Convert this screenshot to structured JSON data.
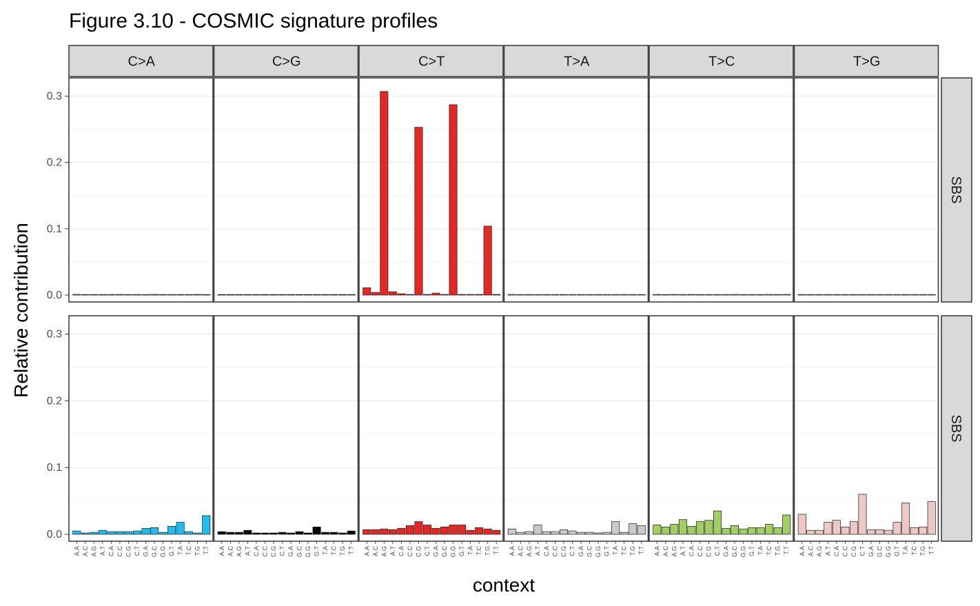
{
  "chart_data": {
    "type": "bar",
    "title": "Figure 3.10 - COSMIC signature profiles",
    "xlabel": "context",
    "ylabel": "Relative contribution",
    "ylim": [
      0,
      0.315
    ],
    "yticks": [
      "0.0",
      "0.1",
      "0.2",
      "0.3"
    ],
    "grid": true,
    "legend": "none",
    "facet_columns": [
      "C>A",
      "C>G",
      "C>T",
      "T>A",
      "T>C",
      "T>G"
    ],
    "facet_rows": [
      "SBS",
      "SBS"
    ],
    "contexts": [
      "A.A",
      "A.C",
      "A.G",
      "A.T",
      "C.A",
      "C.C",
      "C.G",
      "C.T",
      "G.A",
      "G.C",
      "G.G",
      "G.T",
      "T.A",
      "T.C",
      "T.G",
      "T.T"
    ],
    "colors": {
      "C>A": "#1ebff0",
      "C>G": "#050708",
      "C>T": "#e62725",
      "T>A": "#cbcacb",
      "T>C": "#a1cf64",
      "T>G": "#edc8c5"
    },
    "rows": [
      {
        "label": "SBS",
        "series": [
          {
            "mutation": "C>A",
            "values": [
              0.001,
              0,
              0,
              0,
              0,
              0.001,
              0,
              0,
              0,
              0.001,
              0,
              0,
              0,
              0,
              0.001,
              0
            ]
          },
          {
            "mutation": "C>G",
            "values": [
              0,
              0,
              0,
              0,
              0,
              0,
              0,
              0,
              0,
              0,
              0,
              0,
              0,
              0,
              0,
              0
            ]
          },
          {
            "mutation": "C>T",
            "values": [
              0.011,
              0.004,
              0.307,
              0.005,
              0.002,
              0.001,
              0.253,
              0.001,
              0.003,
              0.001,
              0.287,
              0.001,
              0.001,
              0.001,
              0.104,
              0.001
            ]
          },
          {
            "mutation": "T>A",
            "values": [
              0.001,
              0,
              0,
              0,
              0,
              0,
              0,
              0,
              0,
              0,
              0,
              0,
              0,
              0.001,
              0,
              0
            ]
          },
          {
            "mutation": "T>C",
            "values": [
              0.001,
              0,
              0.001,
              0,
              0.001,
              0,
              0,
              0,
              0,
              0.001,
              0,
              0,
              0,
              0.001,
              0,
              0.001
            ]
          },
          {
            "mutation": "T>G",
            "values": [
              0,
              0,
              0,
              0,
              0,
              0,
              0,
              0,
              0,
              0,
              0,
              0,
              0,
              0,
              0,
              0
            ]
          }
        ]
      },
      {
        "label": "SBS",
        "series": [
          {
            "mutation": "C>A",
            "values": [
              0.005,
              0.002,
              0.003,
              0.006,
              0.004,
              0.004,
              0.004,
              0.005,
              0.009,
              0.01,
              0.003,
              0.012,
              0.018,
              0.004,
              0.002,
              0.028
            ]
          },
          {
            "mutation": "C>G",
            "values": [
              0.004,
              0.003,
              0.003,
              0.006,
              0.002,
              0.002,
              0.002,
              0.003,
              0.002,
              0.004,
              0.002,
              0.011,
              0.003,
              0.003,
              0.002,
              0.005
            ]
          },
          {
            "mutation": "C>T",
            "values": [
              0.007,
              0.007,
              0.008,
              0.007,
              0.009,
              0.013,
              0.019,
              0.014,
              0.009,
              0.011,
              0.014,
              0.014,
              0.006,
              0.01,
              0.008,
              0.006
            ]
          },
          {
            "mutation": "T>A",
            "values": [
              0.008,
              0.003,
              0.004,
              0.014,
              0.004,
              0.004,
              0.007,
              0.005,
              0.003,
              0.003,
              0.002,
              0.003,
              0.019,
              0.003,
              0.016,
              0.013
            ]
          },
          {
            "mutation": "T>C",
            "values": [
              0.014,
              0.011,
              0.015,
              0.022,
              0.012,
              0.019,
              0.021,
              0.035,
              0.009,
              0.013,
              0.008,
              0.01,
              0.01,
              0.015,
              0.01,
              0.029
            ]
          },
          {
            "mutation": "T>G",
            "values": [
              0.03,
              0.006,
              0.006,
              0.018,
              0.021,
              0.011,
              0.019,
              0.06,
              0.007,
              0.007,
              0.006,
              0.018,
              0.047,
              0.01,
              0.011,
              0.049
            ]
          }
        ]
      }
    ]
  }
}
